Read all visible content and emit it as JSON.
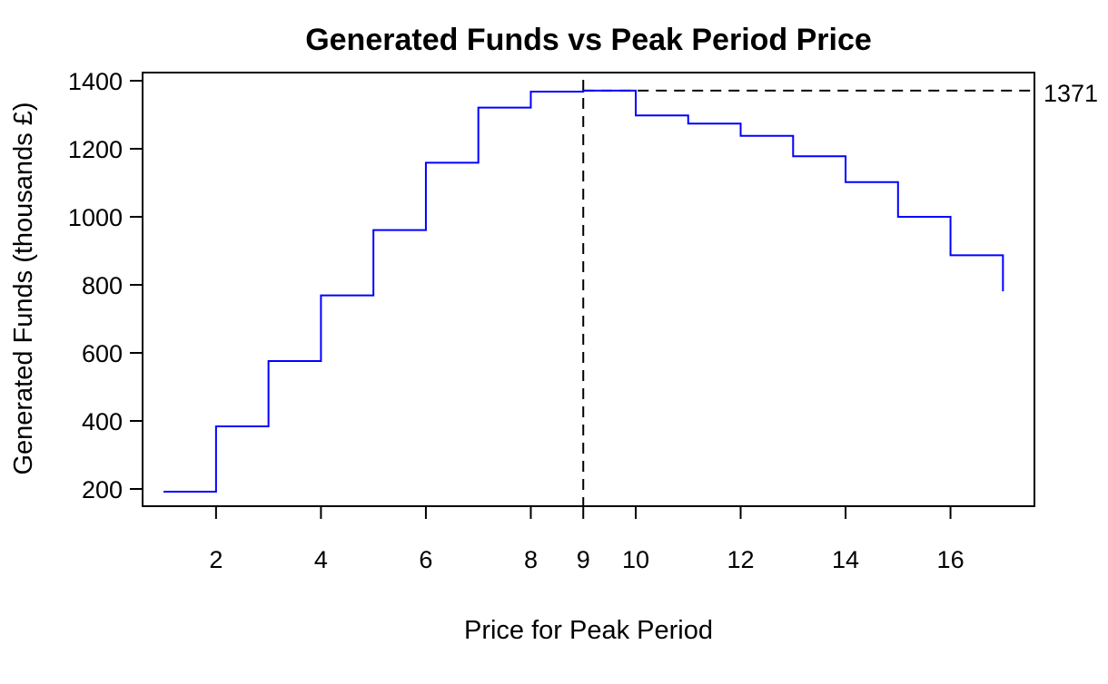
{
  "chart_data": {
    "type": "line",
    "step": true,
    "title": "Generated Funds vs Peak Period Price",
    "xlabel": "Price for Peak Period",
    "ylabel": "Generated Funds (thousands £)",
    "xlim": [
      0.6,
      17.6
    ],
    "ylim": [
      145,
      1400
    ],
    "xticks": [
      2,
      4,
      6,
      8,
      9,
      10,
      12,
      14,
      16
    ],
    "yticks": [
      200,
      400,
      600,
      800,
      1000,
      1200,
      1400
    ],
    "grid": false,
    "series": [
      {
        "color": "#0000ff",
        "x": [
          1,
          2,
          3,
          4,
          5,
          6,
          7,
          8,
          9,
          10,
          11,
          12,
          13,
          14,
          15,
          16,
          17
        ],
        "values": [
          192,
          384,
          576,
          769,
          961,
          1159,
          1321,
          1368,
          1371,
          1298,
          1274,
          1238,
          1178,
          1102,
          1000,
          887,
          781
        ]
      }
    ],
    "annotations": {
      "vline_x": 9,
      "hline_y": 1371,
      "hline_label": "1371",
      "line_style": "dashed",
      "line_color": "#000000"
    }
  }
}
